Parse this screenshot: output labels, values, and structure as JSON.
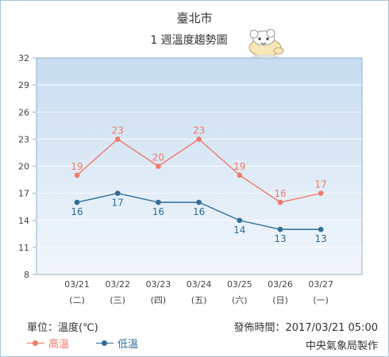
{
  "header": {
    "city": "臺北市",
    "subtitle": "1 週溫度趨勢圖"
  },
  "footer": {
    "unit": "單位：溫度(℃)",
    "published": "發佈時間：2017/03/21 05:00",
    "source": "中央氣象局製作"
  },
  "colors": {
    "high": "#f07a6a",
    "low": "#2f6c98",
    "plot_top": "#c8dcf0",
    "plot_bottom": "#f2f7fc"
  },
  "chart_data": {
    "type": "line",
    "categories": [
      "03/21",
      "03/22",
      "03/23",
      "03/24",
      "03/25",
      "03/26",
      "03/27"
    ],
    "weekdays": [
      "(二)",
      "(三)",
      "(四)",
      "(五)",
      "(六)",
      "(日)",
      "(一)"
    ],
    "series": [
      {
        "name": "高溫",
        "values": [
          19,
          23,
          20,
          23,
          19,
          16,
          17
        ]
      },
      {
        "name": "低溫",
        "values": [
          16,
          17,
          16,
          16,
          14,
          13,
          13
        ]
      }
    ],
    "yticks": [
      8,
      11,
      14,
      17,
      20,
      23,
      26,
      29,
      32
    ],
    "ylim": [
      8,
      32
    ],
    "grid": true,
    "legend": "bottom-left"
  }
}
